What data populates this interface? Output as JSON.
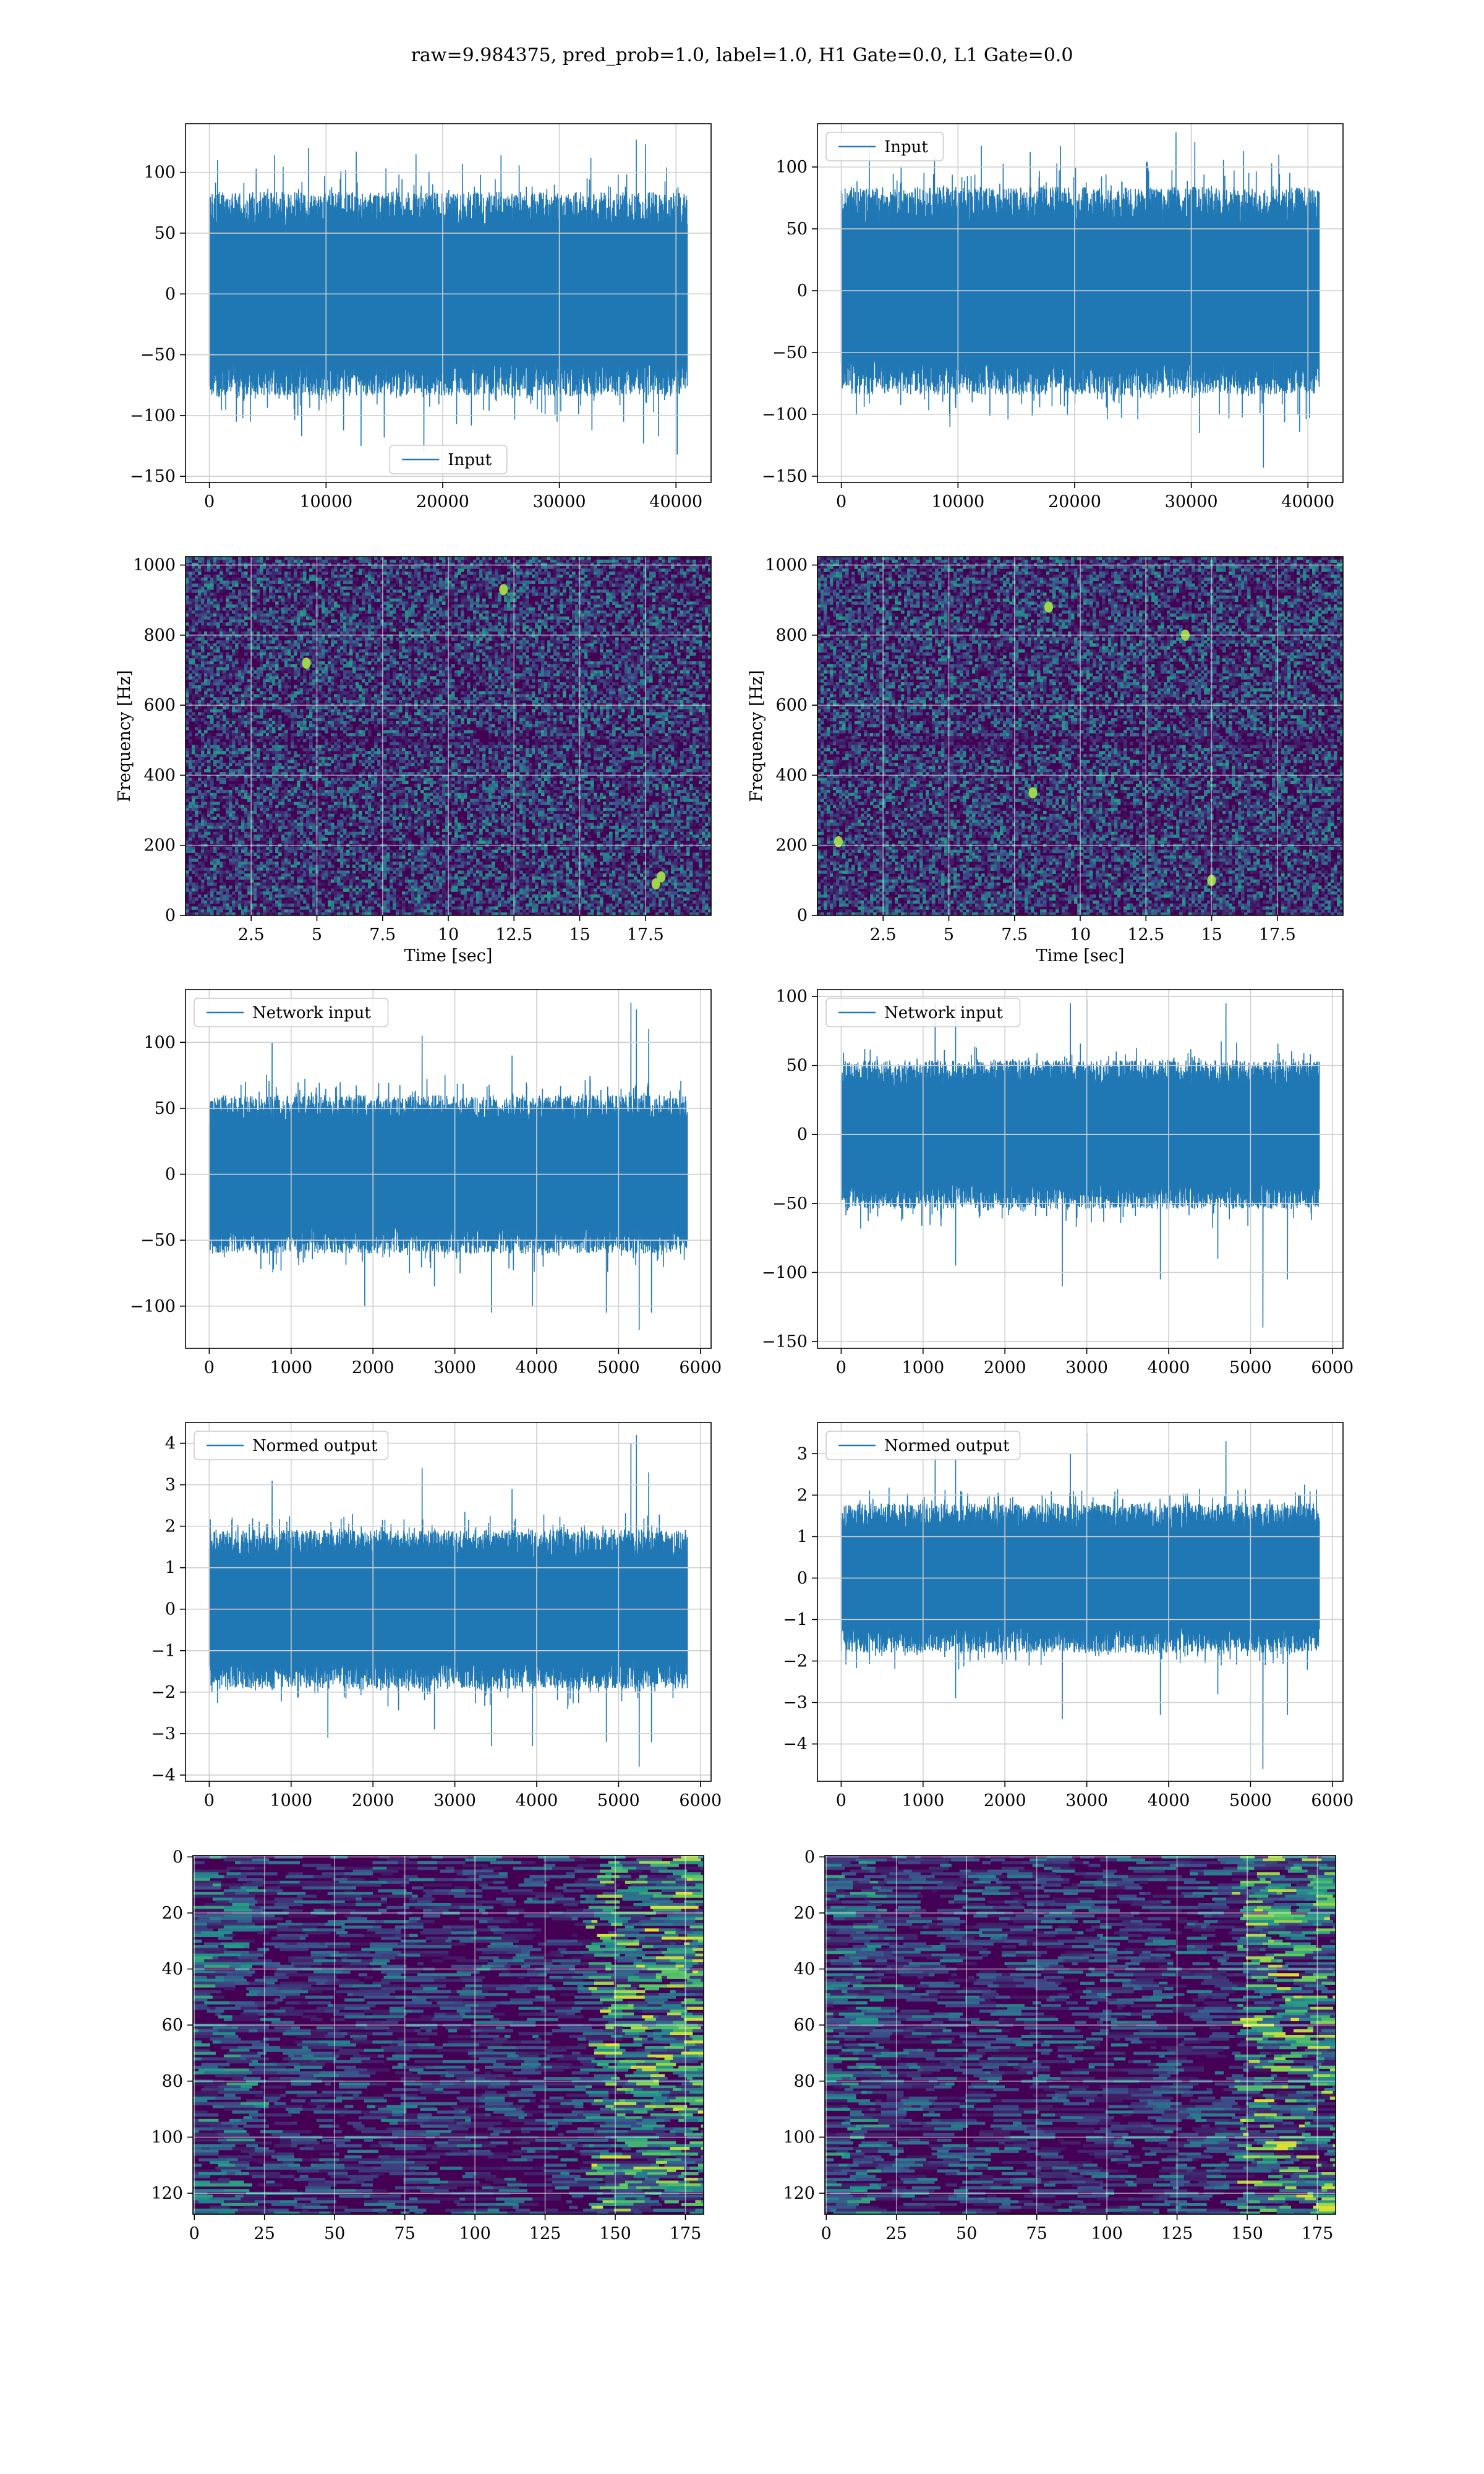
{
  "suptitle": "raw=9.984375, pred_prob=1.0, label=1.0, H1 Gate=0.0, L1 Gate=0.0",
  "colors": {
    "line": "#1f77b4",
    "grid": "#cfcfcf",
    "viridis_low": "#440154",
    "viridis_mid": "#21918c",
    "viridis_high": "#fde725"
  },
  "chart_data": [
    {
      "type": "line",
      "legend": "Input",
      "legend_loc": "lower-center",
      "x_range": [
        0,
        40960
      ],
      "xlim": [
        -2048,
        43008
      ],
      "xticks": [
        0,
        10000,
        20000,
        30000,
        40000
      ],
      "ylim": [
        -155,
        140
      ],
      "yticks": [
        -150,
        -100,
        -50,
        0,
        50,
        100
      ],
      "band": [
        -70,
        70
      ],
      "spikes_up": [
        [
          700,
          110
        ],
        [
          4000,
          103
        ],
        [
          5600,
          114
        ],
        [
          8500,
          120
        ],
        [
          12600,
          117
        ],
        [
          17700,
          115
        ],
        [
          21700,
          107
        ],
        [
          25000,
          114
        ],
        [
          32700,
          112
        ],
        [
          36600,
          127
        ],
        [
          37400,
          123
        ],
        [
          39200,
          104
        ]
      ],
      "spikes_down": [
        [
          2300,
          -105
        ],
        [
          3500,
          -105
        ],
        [
          7900,
          -117
        ],
        [
          11500,
          -112
        ],
        [
          13000,
          -125
        ],
        [
          15000,
          -118
        ],
        [
          18400,
          -130
        ],
        [
          21200,
          -107
        ],
        [
          29800,
          -105
        ],
        [
          32800,
          -112
        ],
        [
          35500,
          -105
        ],
        [
          37200,
          -123
        ],
        [
          38500,
          -117
        ],
        [
          40100,
          -132
        ]
      ],
      "grid": true
    },
    {
      "type": "line",
      "legend": "Input",
      "legend_loc": "upper-left",
      "x_range": [
        0,
        40960
      ],
      "xlim": [
        -2048,
        43008
      ],
      "xticks": [
        0,
        10000,
        20000,
        30000,
        40000
      ],
      "ylim": [
        -155,
        135
      ],
      "yticks": [
        -150,
        -100,
        -50,
        0,
        50,
        100
      ],
      "band": [
        -70,
        70
      ],
      "spikes_up": [
        [
          2400,
          115
        ],
        [
          8000,
          108
        ],
        [
          12000,
          117
        ],
        [
          16200,
          112
        ],
        [
          18800,
          117
        ],
        [
          28700,
          128
        ],
        [
          30300,
          120
        ],
        [
          34500,
          113
        ],
        [
          37500,
          110
        ]
      ],
      "spikes_down": [
        [
          1300,
          -100
        ],
        [
          9300,
          -110
        ],
        [
          14300,
          -104
        ],
        [
          22800,
          -104
        ],
        [
          25400,
          -104
        ],
        [
          30700,
          -115
        ],
        [
          36200,
          -143
        ],
        [
          38000,
          -106
        ],
        [
          39300,
          -114
        ]
      ],
      "grid": true
    },
    {
      "type": "heatmap",
      "ylabel": "Frequency [Hz]",
      "xlabel": "Time [sec]",
      "xlim": [
        0,
        20
      ],
      "xticks": [
        2.5,
        5.0,
        7.5,
        10.0,
        12.5,
        15.0,
        17.5
      ],
      "ylim": [
        0,
        1024
      ],
      "yticks": [
        0,
        200,
        400,
        600,
        800,
        1000
      ],
      "noise": "speckle",
      "hotspots": [
        [
          17.9,
          90
        ],
        [
          18.1,
          110
        ],
        [
          4.6,
          720
        ],
        [
          12.1,
          930
        ]
      ],
      "grid": true
    },
    {
      "type": "heatmap",
      "ylabel": "Frequency [Hz]",
      "xlabel": "Time [sec]",
      "xlim": [
        0,
        20
      ],
      "xticks": [
        2.5,
        5.0,
        7.5,
        10.0,
        12.5,
        15.0,
        17.5
      ],
      "ylim": [
        0,
        1024
      ],
      "yticks": [
        0,
        200,
        400,
        600,
        800,
        1000
      ],
      "noise": "speckle",
      "hotspots": [
        [
          8.2,
          350
        ],
        [
          15.0,
          100
        ],
        [
          14.0,
          800
        ],
        [
          8.8,
          880
        ],
        [
          0.8,
          210
        ]
      ],
      "grid": true
    },
    {
      "type": "line",
      "legend": "Network input",
      "legend_loc": "upper-left",
      "x_range": [
        0,
        5840
      ],
      "xlim": [
        -290,
        6130
      ],
      "xticks": [
        0,
        1000,
        2000,
        3000,
        4000,
        5000,
        6000
      ],
      "ylim": [
        -132,
        140
      ],
      "yticks": [
        -100,
        -50,
        0,
        50,
        100
      ],
      "band": [
        -50,
        50
      ],
      "spikes_up": [
        [
          770,
          100
        ],
        [
          2600,
          105
        ],
        [
          3700,
          90
        ],
        [
          5150,
          130
        ],
        [
          5220,
          125
        ],
        [
          5370,
          110
        ]
      ],
      "spikes_down": [
        [
          1900,
          -100
        ],
        [
          2750,
          -85
        ],
        [
          3450,
          -105
        ],
        [
          3950,
          -100
        ],
        [
          4850,
          -105
        ],
        [
          5250,
          -118
        ],
        [
          5400,
          -105
        ]
      ],
      "grid": true
    },
    {
      "type": "line",
      "legend": "Network input",
      "legend_loc": "upper-left",
      "x_range": [
        0,
        5840
      ],
      "xlim": [
        -290,
        6130
      ],
      "xticks": [
        0,
        1000,
        2000,
        3000,
        4000,
        5000,
        6000
      ],
      "ylim": [
        -155,
        105
      ],
      "yticks": [
        -150,
        -100,
        -50,
        0,
        50,
        100
      ],
      "band": [
        -45,
        45
      ],
      "spikes_up": [
        [
          1150,
          95
        ],
        [
          1400,
          93
        ],
        [
          2800,
          95
        ],
        [
          3000,
          98
        ],
        [
          4700,
          95
        ]
      ],
      "spikes_down": [
        [
          1400,
          -95
        ],
        [
          2700,
          -110
        ],
        [
          3900,
          -105
        ],
        [
          4600,
          -90
        ],
        [
          5150,
          -140
        ],
        [
          5450,
          -105
        ]
      ],
      "grid": true
    },
    {
      "type": "line",
      "legend": "Normed output",
      "legend_loc": "upper-left",
      "x_range": [
        0,
        5840
      ],
      "xlim": [
        -290,
        6130
      ],
      "xticks": [
        0,
        1000,
        2000,
        3000,
        4000,
        5000,
        6000
      ],
      "ylim": [
        -4.15,
        4.5
      ],
      "yticks": [
        -4,
        -3,
        -2,
        -1,
        0,
        1,
        2,
        3,
        4
      ],
      "band": [
        -1.6,
        1.6
      ],
      "spikes_up": [
        [
          770,
          3.1
        ],
        [
          2600,
          3.4
        ],
        [
          3700,
          2.9
        ],
        [
          5150,
          4.0
        ],
        [
          5220,
          4.2
        ],
        [
          5370,
          3.3
        ]
      ],
      "spikes_down": [
        [
          1450,
          -3.1
        ],
        [
          2750,
          -2.9
        ],
        [
          3450,
          -3.3
        ],
        [
          3950,
          -3.3
        ],
        [
          4850,
          -3.2
        ],
        [
          5250,
          -3.8
        ],
        [
          5400,
          -3.2
        ]
      ],
      "grid": true
    },
    {
      "type": "line",
      "legend": "Normed output",
      "legend_loc": "upper-left",
      "x_range": [
        0,
        5840
      ],
      "xlim": [
        -290,
        6130
      ],
      "xticks": [
        0,
        1000,
        2000,
        3000,
        4000,
        5000,
        6000
      ],
      "ylim": [
        -4.9,
        3.75
      ],
      "yticks": [
        -4,
        -3,
        -2,
        -1,
        0,
        1,
        2,
        3
      ],
      "band": [
        -1.5,
        1.5
      ],
      "spikes_up": [
        [
          1150,
          3.0
        ],
        [
          1400,
          2.9
        ],
        [
          2800,
          3.0
        ],
        [
          3000,
          3.5
        ],
        [
          4700,
          3.3
        ]
      ],
      "spikes_down": [
        [
          1400,
          -2.9
        ],
        [
          2700,
          -3.4
        ],
        [
          3900,
          -3.3
        ],
        [
          4600,
          -2.8
        ],
        [
          5150,
          -4.6
        ],
        [
          5450,
          -3.3
        ]
      ],
      "grid": true
    },
    {
      "type": "heatmap",
      "xlim": [
        -0.5,
        181.5
      ],
      "xticks": [
        0,
        25,
        50,
        75,
        100,
        125,
        150,
        175
      ],
      "ylim": [
        127.5,
        -0.5
      ],
      "yticks": [
        0,
        20,
        40,
        60,
        80,
        100,
        120
      ],
      "noise": "streaks",
      "hot_cols": [
        140,
        181
      ],
      "grid": true
    },
    {
      "type": "heatmap",
      "xlim": [
        -0.5,
        181.5
      ],
      "xticks": [
        0,
        25,
        50,
        75,
        100,
        125,
        150,
        175
      ],
      "ylim": [
        127.5,
        -0.5
      ],
      "yticks": [
        0,
        20,
        40,
        60,
        80,
        100,
        120
      ],
      "noise": "streaks",
      "hot_cols": [
        145,
        181
      ],
      "grid": true
    }
  ]
}
